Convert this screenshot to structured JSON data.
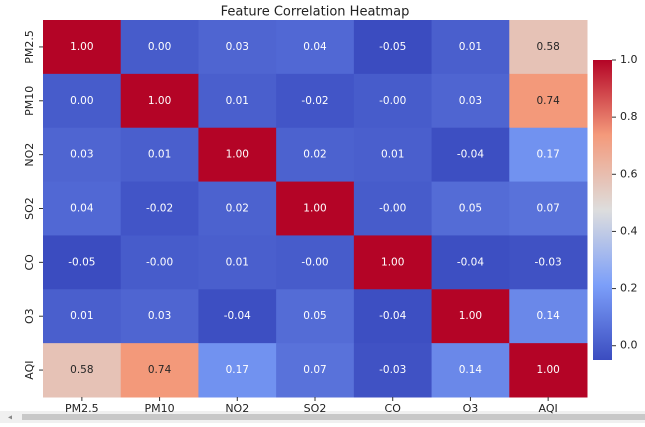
{
  "chart_data": {
    "type": "heatmap",
    "title": "Feature Correlation Heatmap",
    "x_categories": [
      "PM2.5",
      "PM10",
      "NO2",
      "SO2",
      "CO",
      "O3",
      "AQI"
    ],
    "y_categories": [
      "PM2.5",
      "PM10",
      "NO2",
      "SO2",
      "CO",
      "O3",
      "AQI"
    ],
    "values": [
      [
        1.0,
        0.0,
        0.03,
        0.04,
        -0.05,
        0.01,
        0.58
      ],
      [
        0.0,
        1.0,
        0.01,
        -0.02,
        0,
        0.03,
        0.74
      ],
      [
        0.03,
        0.01,
        1.0,
        0.02,
        0.01,
        -0.04,
        0.17
      ],
      [
        0.04,
        -0.02,
        0.02,
        1.0,
        0,
        0.05,
        0.07
      ],
      [
        -0.05,
        0,
        0.01,
        0,
        1.0,
        -0.04,
        -0.03
      ],
      [
        0.01,
        0.03,
        -0.04,
        0.05,
        -0.04,
        1.0,
        0.14
      ],
      [
        0.58,
        0.74,
        0.17,
        0.07,
        -0.03,
        0.14,
        1.0
      ]
    ],
    "value_labels": [
      [
        "1.00",
        "0.00",
        "0.03",
        "0.04",
        "-0.05",
        "0.01",
        "0.58"
      ],
      [
        "0.00",
        "1.00",
        "0.01",
        "-0.02",
        "-0.00",
        "0.03",
        "0.74"
      ],
      [
        "0.03",
        "0.01",
        "1.00",
        "0.02",
        "0.01",
        "-0.04",
        "0.17"
      ],
      [
        "0.04",
        "-0.02",
        "0.02",
        "1.00",
        "-0.00",
        "0.05",
        "0.07"
      ],
      [
        "-0.05",
        "-0.00",
        "0.01",
        "-0.00",
        "1.00",
        "-0.04",
        "-0.03"
      ],
      [
        "0.01",
        "0.03",
        "-0.04",
        "0.05",
        "-0.04",
        "1.00",
        "0.14"
      ],
      [
        "0.58",
        "0.74",
        "0.17",
        "0.07",
        "-0.03",
        "0.14",
        "1.00"
      ]
    ],
    "colormap": "coolwarm",
    "clim": [
      -0.05,
      1.0
    ],
    "cticks": [
      {
        "value": 0,
        "label": "0.0"
      },
      {
        "value": 0.2,
        "label": "0.2"
      },
      {
        "value": 0.4,
        "label": "0.4"
      },
      {
        "value": 0.6,
        "label": "0.6"
      },
      {
        "value": 0.8,
        "label": "0.8"
      },
      {
        "value": 1.0,
        "label": "1.0"
      }
    ]
  }
}
